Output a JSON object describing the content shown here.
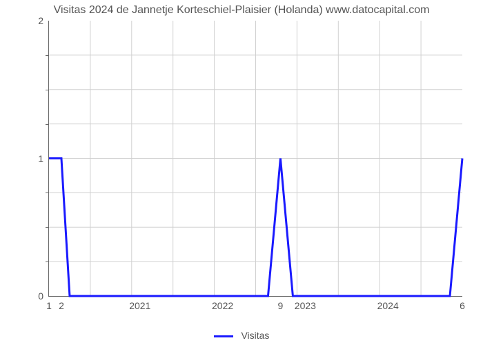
{
  "chart": {
    "type": "line",
    "title": "Visitas 2024 de Jannetje Korteschiel-Plaisier (Holanda) www.datocapital.com",
    "title_fontsize": 16,
    "title_color": "#555555",
    "background_color": "#ffffff",
    "grid_color": "#d0d0d0",
    "axis_color": "#666666",
    "tick_label_color": "#555555",
    "tick_fontsize": 14,
    "x_year_labels": [
      "2021",
      "2022",
      "2023",
      "2024"
    ],
    "x_year_positions_pct": [
      22,
      42,
      62,
      82
    ],
    "x_value_labels": [
      "1",
      "2",
      "9",
      "6"
    ],
    "x_value_positions_pct": [
      0,
      3,
      56,
      100
    ],
    "y_tick_labels": [
      "0",
      "1",
      "2"
    ],
    "y_tick_positions_pct": [
      100,
      50,
      0
    ],
    "y_minor_positions_pct": [
      12.5,
      25,
      37.5,
      62.5,
      75,
      87.5
    ],
    "ylim": [
      0,
      2
    ],
    "series": {
      "name": "Visitas",
      "color": "#1a1aff",
      "line_width": 3,
      "points_x_pct": [
        0,
        3,
        5,
        53,
        56,
        59,
        97,
        100
      ],
      "points_y_val": [
        1,
        1,
        0,
        0,
        1,
        0,
        0,
        1
      ]
    },
    "legend": {
      "label": "Visitas",
      "swatch_color": "#1a1aff"
    },
    "grid_x_count": 10,
    "grid_y_count": 8
  }
}
